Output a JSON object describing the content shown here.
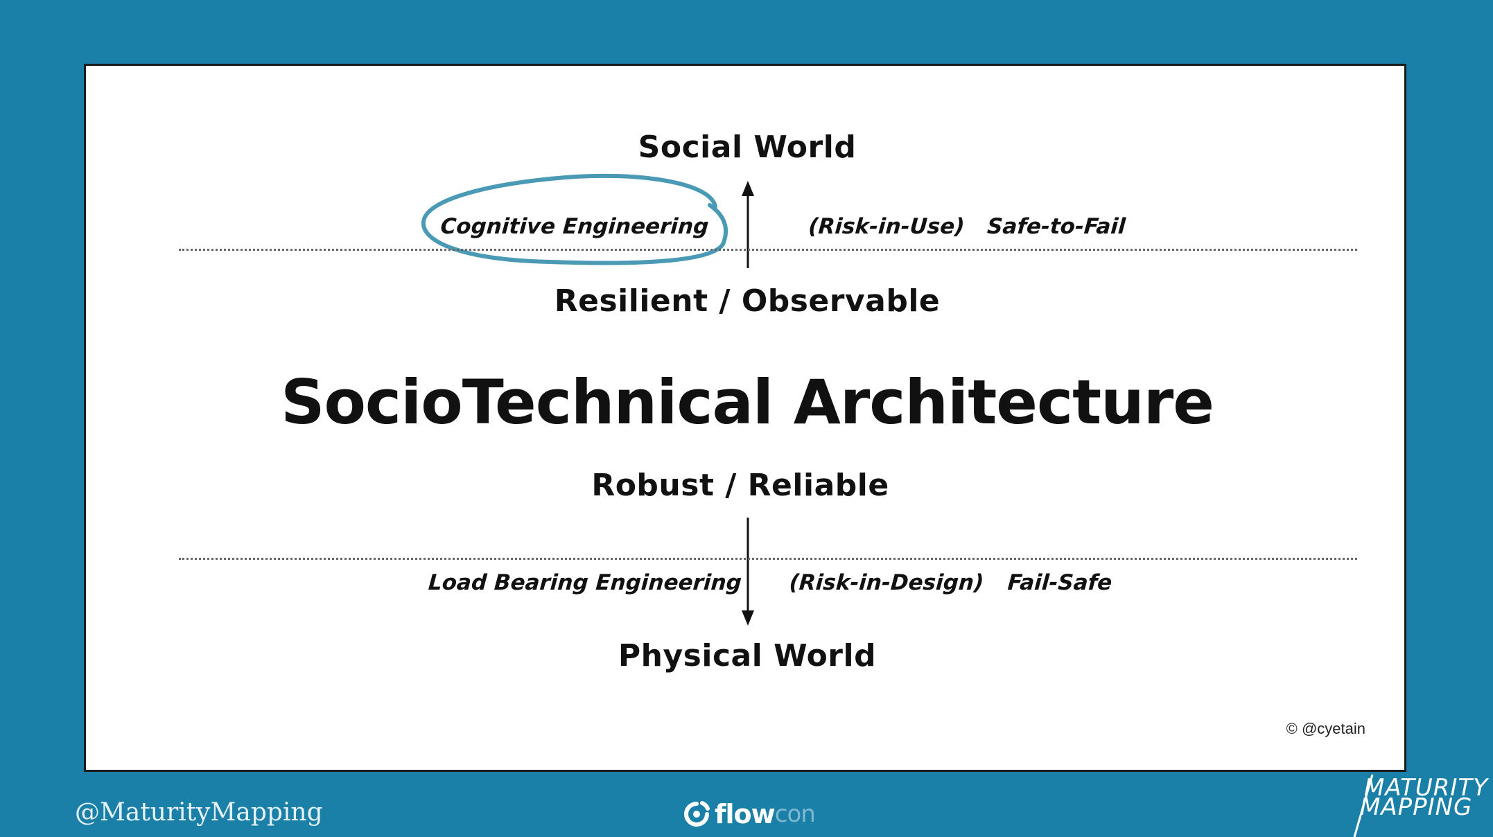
{
  "slide": {
    "top_label": "Social World",
    "upper_left": "Cognitive Engineering",
    "upper_middle": "(Risk-in-Use)",
    "upper_right": "Safe-to-Fail",
    "upper_axis_label": "Resilient / Observable",
    "main_title": "SocioTechnical Architecture",
    "lower_axis_label": "Robust / Reliable",
    "lower_left": "Load Bearing Engineering",
    "lower_middle": "(Risk-in-Design)",
    "lower_right": "Fail-Safe",
    "bottom_label": "Physical World",
    "copyright": "© @cyetain"
  },
  "footer": {
    "handle": "@MaturityMapping",
    "event_logo_part1": "flow",
    "event_logo_part2": "con",
    "brand_line1": "MATURITY",
    "brand_line2": "MAPPING"
  },
  "colors": {
    "background": "#1a80a8",
    "card": "#ffffff",
    "highlight_circle": "#4a9ab5"
  }
}
